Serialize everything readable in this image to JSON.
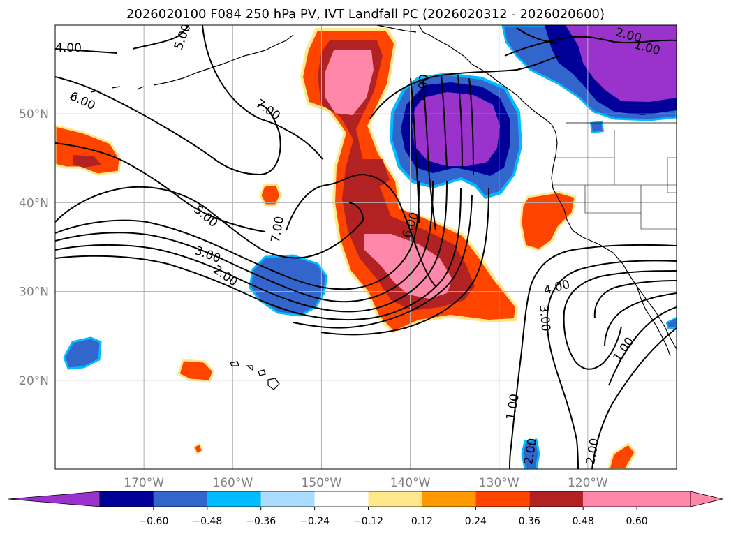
{
  "title": "2026020100 F084 250 hPa PV, IVT Landfall PC (2026020312 - 2026020600)",
  "map": {
    "lon_range": [
      -180,
      -110
    ],
    "lat_range": [
      10,
      60
    ],
    "lon_ticks": [
      {
        "value": -170,
        "label": "170°W"
      },
      {
        "value": -160,
        "label": "160°W"
      },
      {
        "value": -150,
        "label": "150°W"
      },
      {
        "value": -140,
        "label": "140°W"
      },
      {
        "value": -130,
        "label": "130°W"
      },
      {
        "value": -120,
        "label": "120°W"
      }
    ],
    "lat_ticks": [
      {
        "value": 20,
        "label": "20°N"
      },
      {
        "value": 30,
        "label": "30°N"
      },
      {
        "value": 40,
        "label": "40°N"
      },
      {
        "value": 50,
        "label": "50°N"
      }
    ],
    "grid": true
  },
  "colorbar": {
    "colors": [
      "#9933cc",
      "#000099",
      "#3366cc",
      "#00bbff",
      "#aaddff",
      "#ffffff",
      "#ffe88a",
      "#ff9900",
      "#ff4400",
      "#b22222",
      "#ff88aa",
      "#ff88aa"
    ],
    "labels": [
      "−0.60",
      "−0.48",
      "−0.36",
      "−0.24",
      "−0.12",
      "0.12",
      "0.24",
      "0.36",
      "0.48",
      "0.60"
    ],
    "extend": "both"
  },
  "contour_labels": [
    {
      "text": "4.00",
      "lon": -178.5,
      "lat": 57.5,
      "rot": 0
    },
    {
      "text": "5.00",
      "lon": -165.7,
      "lat": 58.7,
      "rot": -70
    },
    {
      "text": "6.00",
      "lon": -176.9,
      "lat": 51.5,
      "rot": 25
    },
    {
      "text": "7.00",
      "lon": -156.0,
      "lat": 50.5,
      "rot": 35
    },
    {
      "text": "5.00",
      "lon": -163.0,
      "lat": 38.5,
      "rot": 40
    },
    {
      "text": "7.00",
      "lon": -155.0,
      "lat": 37.0,
      "rot": -80
    },
    {
      "text": "3.00",
      "lon": -162.8,
      "lat": 34.2,
      "rot": 20
    },
    {
      "text": "2.00",
      "lon": -160.8,
      "lat": 31.8,
      "rot": 35
    },
    {
      "text": "4.00",
      "lon": -138.6,
      "lat": 53.0,
      "rot": -85
    },
    {
      "text": "6.00",
      "lon": -140.0,
      "lat": 37.5,
      "rot": -70
    },
    {
      "text": "2.00",
      "lon": -115.4,
      "lat": 58.9,
      "rot": 15
    },
    {
      "text": "1.00",
      "lon": -113.3,
      "lat": 57.5,
      "rot": 15
    },
    {
      "text": "4.00",
      "lon": -123.5,
      "lat": 30.5,
      "rot": -15
    },
    {
      "text": "3.00",
      "lon": -124.8,
      "lat": 27.0,
      "rot": 85
    },
    {
      "text": "1.00",
      "lon": -116.0,
      "lat": 23.5,
      "rot": -55
    },
    {
      "text": "1.00",
      "lon": -128.5,
      "lat": 17.0,
      "rot": -80
    },
    {
      "text": "2.00",
      "lon": -126.5,
      "lat": 12.0,
      "rot": -80
    },
    {
      "text": "2.00",
      "lon": -119.5,
      "lat": 12.0,
      "rot": -80
    }
  ]
}
